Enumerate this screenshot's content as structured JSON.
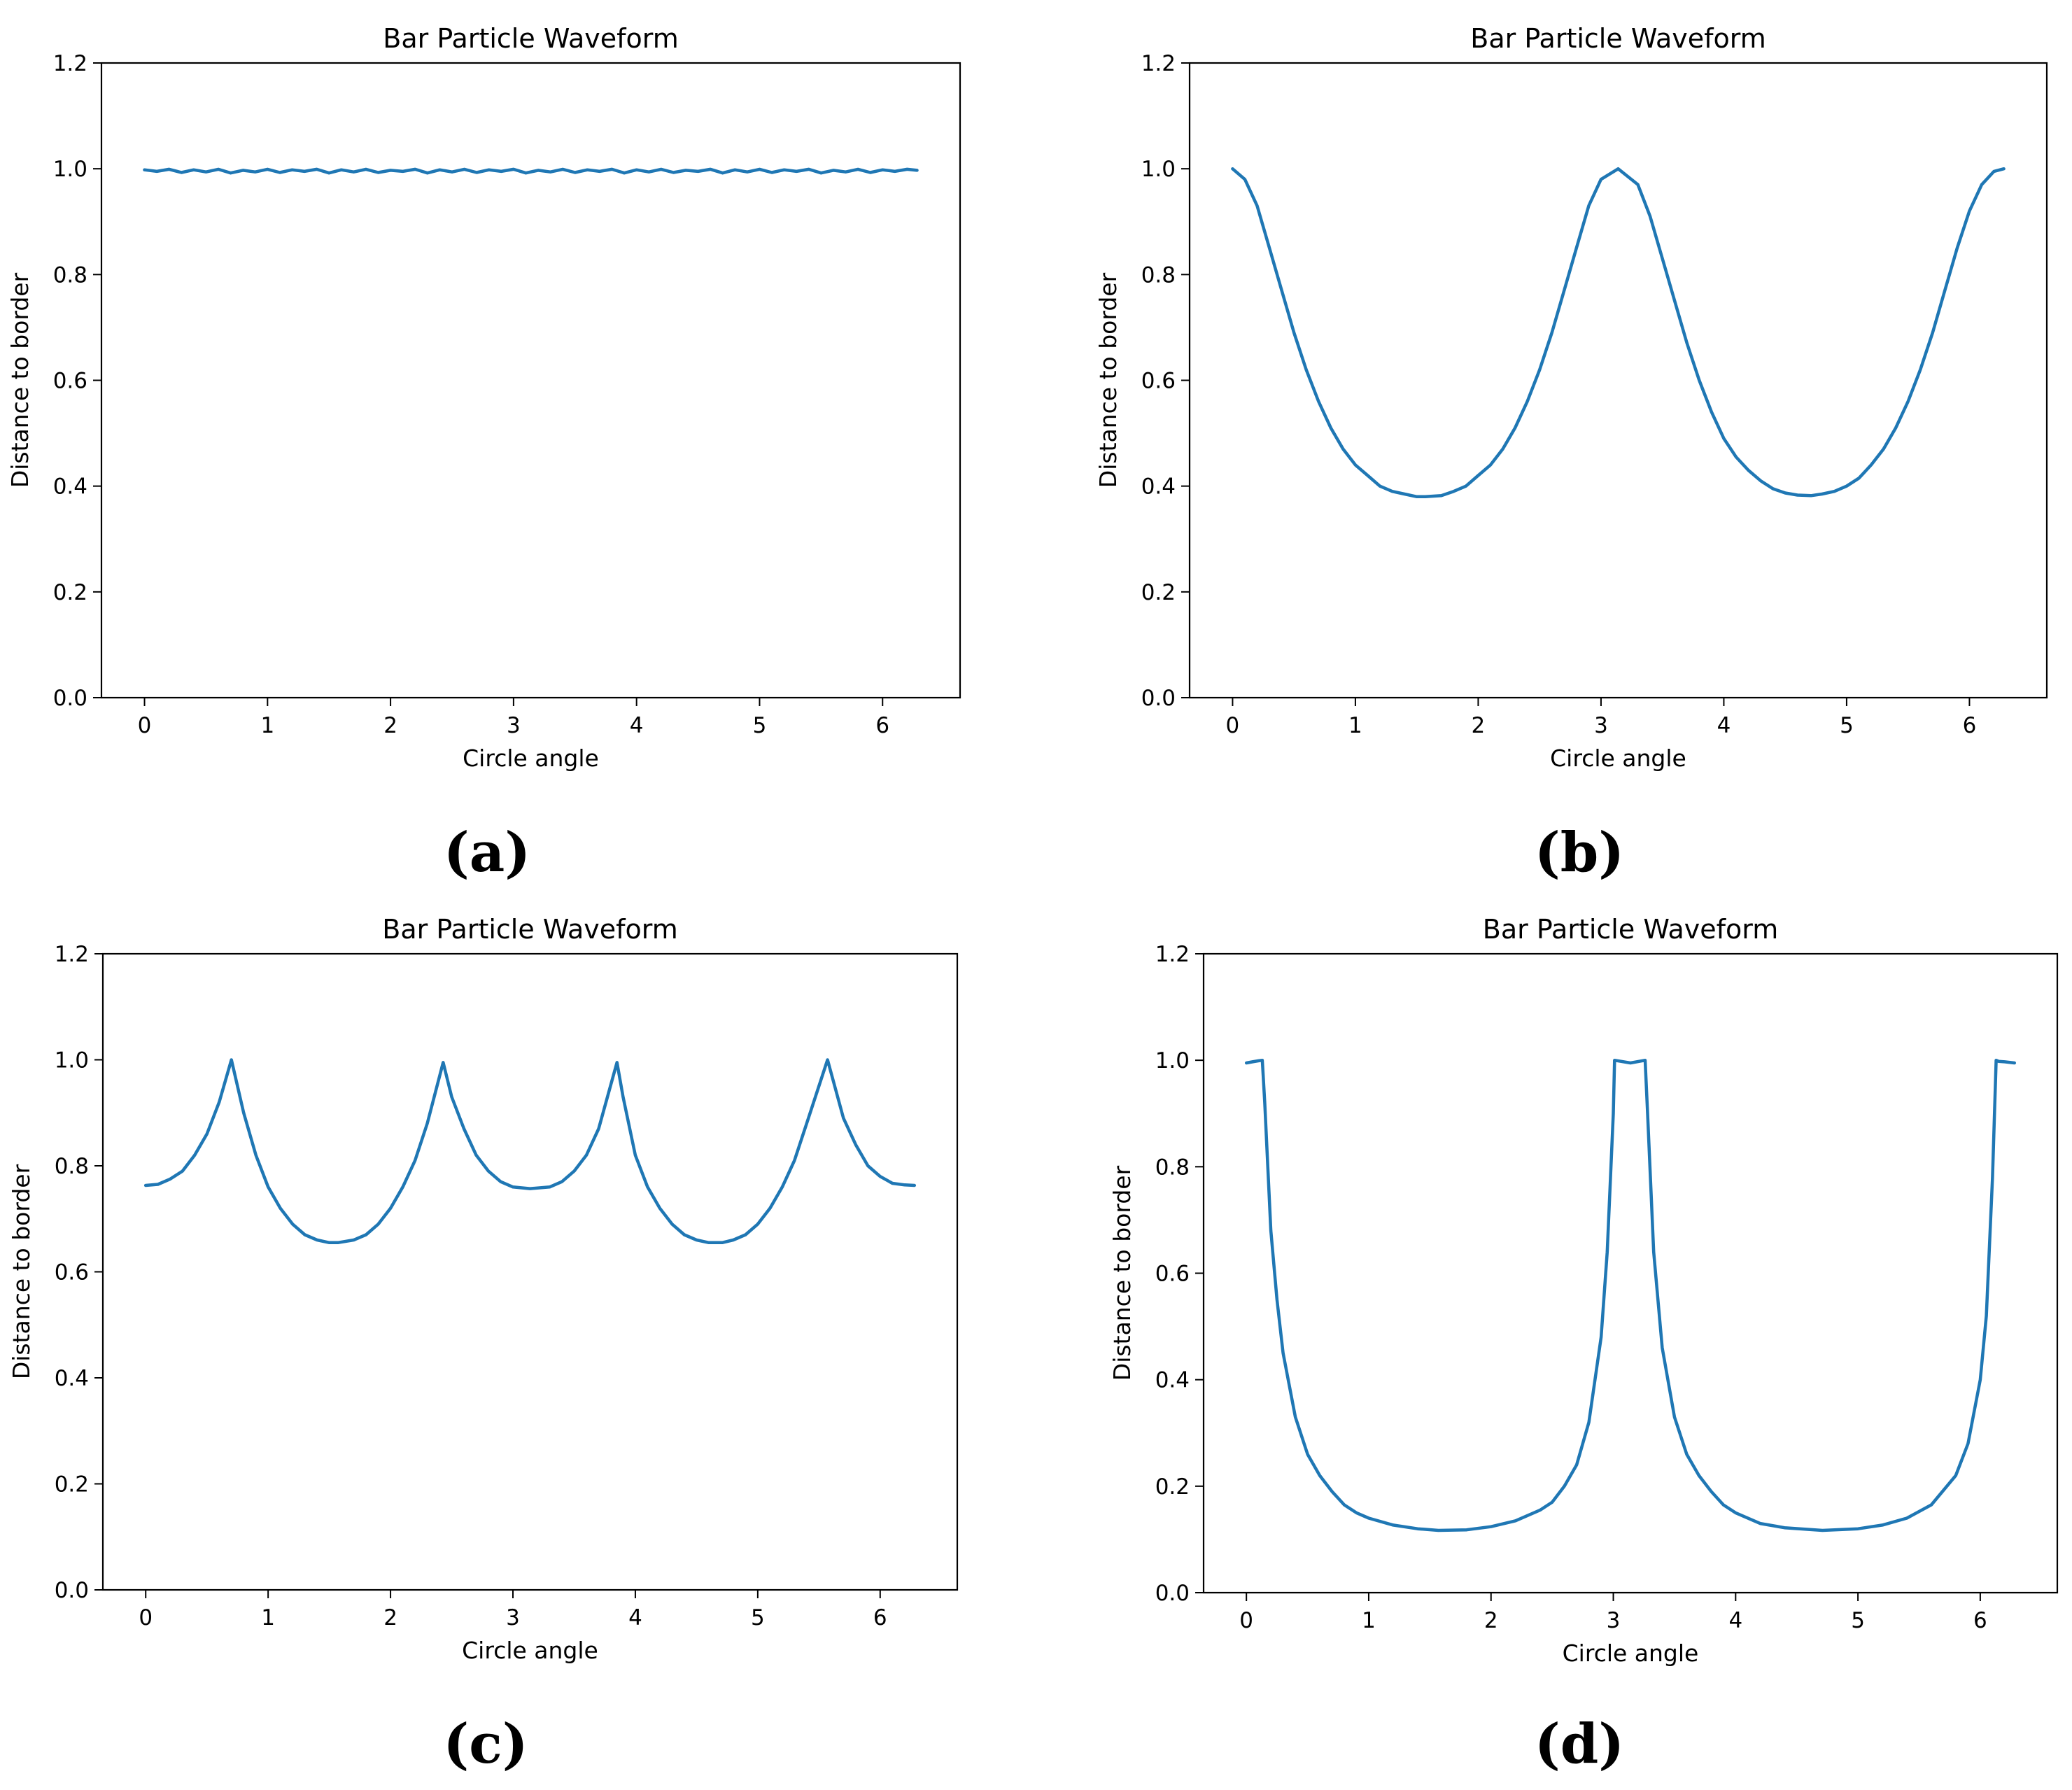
{
  "figure": {
    "panels": [
      {
        "label": "(a)"
      },
      {
        "label": "(b)"
      },
      {
        "label": "(c)"
      },
      {
        "label": "(d)"
      }
    ]
  },
  "chart_data": [
    {
      "type": "line",
      "title": "Bar Particle Waveform",
      "xlabel": "Circle angle",
      "ylabel": "Distance to border",
      "xlim": [
        -0.35,
        6.63
      ],
      "ylim": [
        0.0,
        1.2
      ],
      "xticks": [
        "0",
        "1",
        "2",
        "3",
        "4",
        "5",
        "6"
      ],
      "yticks": [
        "0.0",
        "0.2",
        "0.4",
        "0.6",
        "0.8",
        "1.0",
        "1.2"
      ],
      "grid": false,
      "line_color": "#1f77b4",
      "series": [
        {
          "x": [
            0,
            0.1,
            0.2,
            0.3,
            0.4,
            0.5,
            0.6,
            0.7,
            0.8,
            0.9,
            1.0,
            1.1,
            1.2,
            1.3,
            1.4,
            1.5,
            1.6,
            1.7,
            1.8,
            1.9,
            2.0,
            2.1,
            2.2,
            2.3,
            2.4,
            2.5,
            2.6,
            2.7,
            2.8,
            2.9,
            3.0,
            3.1,
            3.2,
            3.3,
            3.4,
            3.5,
            3.6,
            3.7,
            3.8,
            3.9,
            4.0,
            4.1,
            4.2,
            4.3,
            4.4,
            4.5,
            4.6,
            4.7,
            4.8,
            4.9,
            5.0,
            5.1,
            5.2,
            5.3,
            5.4,
            5.5,
            5.6,
            5.7,
            5.8,
            5.9,
            6.0,
            6.1,
            6.2,
            6.28
          ],
          "y": [
            0.998,
            0.995,
            0.999,
            0.993,
            0.998,
            0.994,
            0.999,
            0.992,
            0.997,
            0.994,
            0.999,
            0.993,
            0.998,
            0.995,
            0.999,
            0.992,
            0.998,
            0.994,
            0.999,
            0.993,
            0.997,
            0.995,
            0.999,
            0.992,
            0.998,
            0.994,
            0.999,
            0.993,
            0.998,
            0.995,
            0.999,
            0.992,
            0.997,
            0.994,
            0.999,
            0.993,
            0.998,
            0.995,
            0.999,
            0.992,
            0.998,
            0.994,
            0.999,
            0.993,
            0.997,
            0.995,
            0.999,
            0.992,
            0.998,
            0.994,
            0.999,
            0.993,
            0.998,
            0.995,
            0.999,
            0.992,
            0.997,
            0.994,
            0.999,
            0.993,
            0.998,
            0.995,
            0.999,
            0.997
          ]
        }
      ]
    },
    {
      "type": "line",
      "title": "Bar Particle Waveform",
      "xlabel": "Circle angle",
      "ylabel": "Distance to border",
      "xlim": [
        -0.35,
        6.63
      ],
      "ylim": [
        0.0,
        1.2
      ],
      "xticks": [
        "0",
        "1",
        "2",
        "3",
        "4",
        "5",
        "6"
      ],
      "yticks": [
        "0.0",
        "0.2",
        "0.4",
        "0.6",
        "0.8",
        "1.0",
        "1.2"
      ],
      "grid": false,
      "line_color": "#1f77b4",
      "series": [
        {
          "x": [
            0,
            0.1,
            0.2,
            0.3,
            0.4,
            0.5,
            0.6,
            0.7,
            0.8,
            0.9,
            1.0,
            1.1,
            1.2,
            1.3,
            1.4,
            1.5,
            1.57,
            1.7,
            1.8,
            1.9,
            2.0,
            2.1,
            2.2,
            2.3,
            2.4,
            2.5,
            2.6,
            2.7,
            2.8,
            2.9,
            3.0,
            3.14,
            3.3,
            3.4,
            3.5,
            3.6,
            3.7,
            3.8,
            3.9,
            4.0,
            4.1,
            4.2,
            4.3,
            4.4,
            4.5,
            4.6,
            4.71,
            4.8,
            4.9,
            5.0,
            5.1,
            5.2,
            5.3,
            5.4,
            5.5,
            5.6,
            5.7,
            5.8,
            5.9,
            6.0,
            6.1,
            6.2,
            6.28
          ],
          "y": [
            1.0,
            0.98,
            0.93,
            0.85,
            0.77,
            0.69,
            0.62,
            0.56,
            0.51,
            0.47,
            0.44,
            0.42,
            0.4,
            0.39,
            0.385,
            0.38,
            0.38,
            0.382,
            0.39,
            0.4,
            0.42,
            0.44,
            0.47,
            0.51,
            0.56,
            0.62,
            0.69,
            0.77,
            0.85,
            0.93,
            0.98,
            1.0,
            0.97,
            0.91,
            0.83,
            0.75,
            0.67,
            0.6,
            0.54,
            0.49,
            0.455,
            0.43,
            0.41,
            0.395,
            0.387,
            0.383,
            0.382,
            0.385,
            0.39,
            0.4,
            0.415,
            0.44,
            0.47,
            0.51,
            0.56,
            0.62,
            0.69,
            0.77,
            0.85,
            0.92,
            0.97,
            0.995,
            1.0
          ]
        }
      ]
    },
    {
      "type": "line",
      "title": "Bar Particle Waveform",
      "xlabel": "Circle angle",
      "ylabel": "Distance to border",
      "xlim": [
        -0.35,
        6.63
      ],
      "ylim": [
        0.0,
        1.2
      ],
      "xticks": [
        "0",
        "1",
        "2",
        "3",
        "4",
        "5",
        "6"
      ],
      "yticks": [
        "0.0",
        "0.2",
        "0.4",
        "0.6",
        "0.8",
        "1.0",
        "1.2"
      ],
      "grid": false,
      "line_color": "#1f77b4",
      "series": [
        {
          "x": [
            0,
            0.1,
            0.2,
            0.3,
            0.4,
            0.5,
            0.6,
            0.7,
            0.8,
            0.9,
            1.0,
            1.1,
            1.2,
            1.3,
            1.4,
            1.5,
            1.57,
            1.7,
            1.8,
            1.9,
            2.0,
            2.1,
            2.2,
            2.3,
            2.43,
            2.5,
            2.6,
            2.7,
            2.8,
            2.9,
            3.0,
            3.14,
            3.3,
            3.4,
            3.5,
            3.6,
            3.7,
            3.85,
            3.9,
            4.0,
            4.1,
            4.2,
            4.3,
            4.4,
            4.5,
            4.6,
            4.71,
            4.8,
            4.9,
            5.0,
            5.1,
            5.2,
            5.3,
            5.4,
            5.57,
            5.7,
            5.8,
            5.9,
            6.0,
            6.1,
            6.2,
            6.28
          ],
          "y": [
            0.763,
            0.765,
            0.775,
            0.79,
            0.82,
            0.86,
            0.92,
            1.0,
            0.9,
            0.82,
            0.76,
            0.72,
            0.69,
            0.67,
            0.66,
            0.655,
            0.655,
            0.66,
            0.67,
            0.69,
            0.72,
            0.76,
            0.81,
            0.88,
            0.995,
            0.93,
            0.87,
            0.82,
            0.79,
            0.77,
            0.76,
            0.757,
            0.76,
            0.77,
            0.79,
            0.82,
            0.87,
            0.995,
            0.93,
            0.82,
            0.76,
            0.72,
            0.69,
            0.67,
            0.66,
            0.655,
            0.655,
            0.66,
            0.67,
            0.69,
            0.72,
            0.76,
            0.81,
            0.88,
            1.0,
            0.89,
            0.84,
            0.8,
            0.78,
            0.767,
            0.764,
            0.763
          ]
        }
      ]
    },
    {
      "type": "line",
      "title": "Bar Particle Waveform",
      "xlabel": "Circle angle",
      "ylabel": "Distance to border",
      "xlim": [
        -0.35,
        6.63
      ],
      "ylim": [
        0.0,
        1.2
      ],
      "xticks": [
        "0",
        "1",
        "2",
        "3",
        "4",
        "5",
        "6"
      ],
      "yticks": [
        "0.0",
        "0.2",
        "0.4",
        "0.6",
        "0.8",
        "1.0",
        "1.2"
      ],
      "grid": false,
      "line_color": "#1f77b4",
      "series": [
        {
          "x": [
            0,
            0.05,
            0.1,
            0.13,
            0.15,
            0.2,
            0.25,
            0.3,
            0.4,
            0.5,
            0.6,
            0.7,
            0.8,
            0.9,
            1.0,
            1.2,
            1.4,
            1.57,
            1.8,
            2.0,
            2.2,
            2.4,
            2.5,
            2.6,
            2.7,
            2.8,
            2.9,
            2.95,
            3.0,
            3.01,
            3.14,
            3.26,
            3.28,
            3.33,
            3.4,
            3.5,
            3.6,
            3.7,
            3.8,
            3.9,
            4.0,
            4.2,
            4.4,
            4.71,
            5.0,
            5.2,
            5.4,
            5.6,
            5.8,
            5.9,
            6.0,
            6.05,
            6.1,
            6.13,
            6.15,
            6.2,
            6.28
          ],
          "y": [
            0.995,
            0.997,
            0.999,
            1.0,
            0.92,
            0.68,
            0.55,
            0.45,
            0.33,
            0.26,
            0.22,
            0.19,
            0.165,
            0.15,
            0.14,
            0.127,
            0.12,
            0.117,
            0.118,
            0.124,
            0.135,
            0.155,
            0.17,
            0.2,
            0.24,
            0.32,
            0.48,
            0.64,
            0.9,
            1.0,
            0.995,
            1.0,
            0.9,
            0.64,
            0.46,
            0.33,
            0.26,
            0.22,
            0.19,
            0.165,
            0.15,
            0.13,
            0.122,
            0.117,
            0.12,
            0.127,
            0.14,
            0.165,
            0.22,
            0.28,
            0.4,
            0.52,
            0.78,
            1.0,
            0.998,
            0.997,
            0.995
          ]
        }
      ]
    }
  ]
}
